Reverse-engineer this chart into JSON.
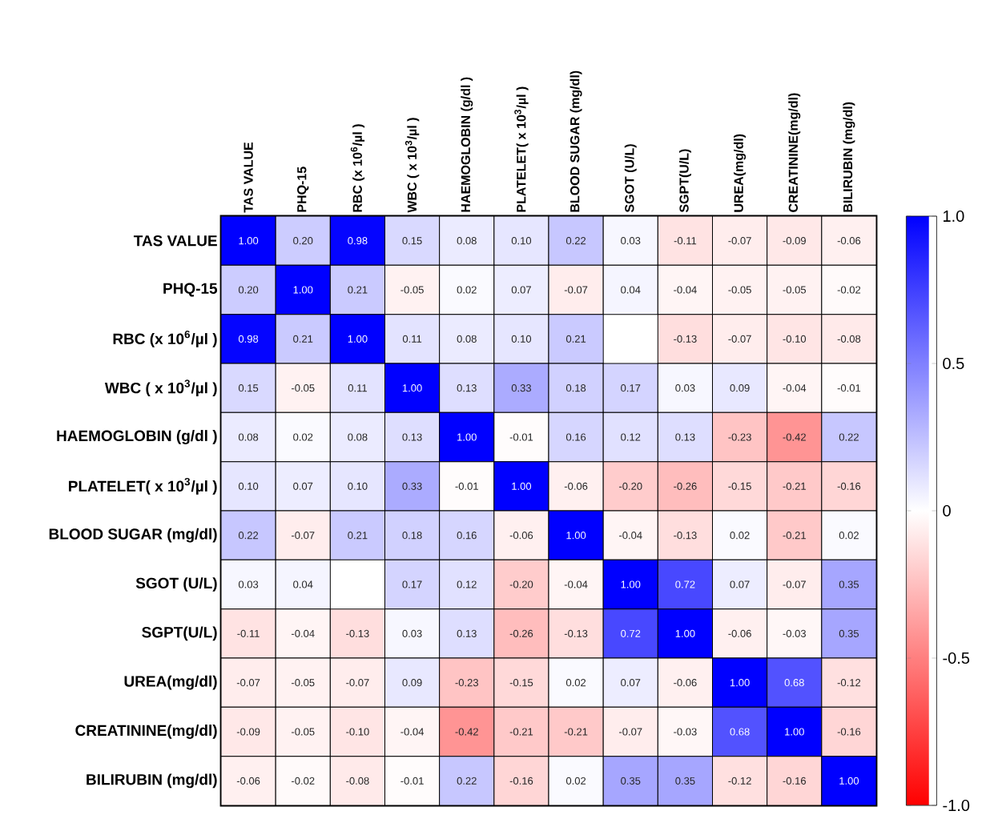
{
  "chart_data": {
    "type": "heatmap",
    "categories": [
      "TAS VALUE",
      "PHQ-15",
      "RBC (x 10$^{6}$/µl )",
      "WBC ( x 10$^{3}$/µl )",
      "HAEMOGLOBIN (g/dl )",
      "PLATELET( x 10$^{3}$/µl )",
      "BLOOD SUGAR (mg/dl)",
      "SGOT (U/L)",
      "SGPT(U/L)",
      "UREA(mg/dl)",
      "CREATININE(mg/dl)",
      "BILIRUBIN (mg/dl)"
    ],
    "y_categories": [
      "TAS VALUE",
      "PHQ-15",
      "RBC (x 10$^{6}$/µl )",
      "WBC ( x 10$^{3}$/µl )",
      "HAEMOGLOBIN (g/dl )",
      "PLATELET( x 10$^{3}$/µl )",
      "BLOOD SUGAR (mg/dl)",
      "SGOT (U/L)",
      "SGPT(U/L)",
      "UREA(mg/dl)",
      "CREATININE(mg/dl)",
      "BILIRUBIN (mg/dl)"
    ],
    "cells": [
      [
        1.0,
        0.2,
        0.98,
        0.15,
        0.08,
        0.1,
        0.22,
        0.03,
        -0.11,
        -0.07,
        -0.09,
        -0.06
      ],
      [
        0.2,
        1.0,
        0.21,
        -0.05,
        0.02,
        0.07,
        -0.07,
        0.04,
        -0.04,
        -0.05,
        -0.05,
        -0.02
      ],
      [
        0.98,
        0.21,
        1.0,
        0.11,
        0.08,
        0.1,
        0.21,
        null,
        -0.13,
        -0.07,
        -0.1,
        -0.08
      ],
      [
        0.15,
        -0.05,
        0.11,
        1.0,
        0.13,
        0.33,
        0.18,
        0.17,
        0.03,
        0.09,
        -0.04,
        -0.01
      ],
      [
        0.08,
        0.02,
        0.08,
        0.13,
        1.0,
        -0.01,
        0.16,
        0.12,
        0.13,
        -0.23,
        -0.42,
        0.22
      ],
      [
        0.1,
        0.07,
        0.1,
        0.33,
        -0.01,
        1.0,
        -0.06,
        -0.2,
        -0.26,
        -0.15,
        -0.21,
        -0.16
      ],
      [
        0.22,
        -0.07,
        0.21,
        0.18,
        0.16,
        -0.06,
        1.0,
        -0.04,
        -0.13,
        0.02,
        -0.21,
        0.02
      ],
      [
        0.03,
        0.04,
        null,
        0.17,
        0.12,
        -0.2,
        -0.04,
        1.0,
        0.72,
        0.07,
        -0.07,
        0.35
      ],
      [
        -0.11,
        -0.04,
        -0.13,
        0.03,
        0.13,
        -0.26,
        -0.13,
        0.72,
        1.0,
        -0.06,
        -0.03,
        0.35
      ],
      [
        -0.07,
        -0.05,
        -0.07,
        0.09,
        -0.23,
        -0.15,
        0.02,
        0.07,
        -0.06,
        1.0,
        0.68,
        -0.12
      ],
      [
        -0.09,
        -0.05,
        -0.1,
        -0.04,
        -0.42,
        -0.21,
        -0.21,
        -0.07,
        -0.03,
        0.68,
        1.0,
        -0.16
      ],
      [
        -0.06,
        -0.02,
        -0.08,
        -0.01,
        0.22,
        -0.16,
        0.02,
        0.35,
        0.35,
        -0.12,
        -0.16,
        1.0
      ]
    ],
    "cell_labels": [
      [
        "1.00",
        "0.20",
        "0.98",
        "0.15",
        "0.08",
        "0.10",
        "0.22",
        "0.03",
        "-0.11",
        "-0.07",
        "-0.09",
        "-0.06"
      ],
      [
        "0.20",
        "1.00",
        "0.21",
        "-0.05",
        "0.02",
        "0.07",
        "-0.07",
        "0.04",
        "-0.04",
        "-0.05",
        "-0.05",
        "-0.02"
      ],
      [
        "0.98",
        "0.21",
        "1.00",
        "0.11",
        "0.08",
        "0.10",
        "0.21",
        null,
        "-0.13",
        "-0.07",
        "-0.10",
        "-0.08"
      ],
      [
        "0.15",
        "-0.05",
        "0.11",
        "1.00",
        "0.13",
        "0.33",
        "0.18",
        "0.17",
        "0.03",
        "0.09",
        "-0.04",
        "-0.01"
      ],
      [
        "0.08",
        "0.02",
        "0.08",
        "0.13",
        "1.00",
        "-0.01",
        "0.16",
        "0.12",
        "0.13",
        "-0.23",
        "-0.42",
        "0.22"
      ],
      [
        "0.10",
        "0.07",
        "0.10",
        "0.33",
        "-0.01",
        "1.00",
        "-0.06",
        "-0.20",
        "-0.26",
        "-0.15",
        "-0.21",
        "-0.16"
      ],
      [
        "0.22",
        "-0.07",
        "0.21",
        "0.18",
        "0.16",
        "-0.06",
        "1.00",
        "-0.04",
        "-0.13",
        "0.02",
        "-0.21",
        "0.02"
      ],
      [
        "0.03",
        "0.04",
        null,
        "0.17",
        "0.12",
        "-0.20",
        "-0.04",
        "1.00",
        "0.72",
        "0.07",
        "-0.07",
        "0.35"
      ],
      [
        "-0.11",
        "-0.04",
        "-0.13",
        "0.03",
        "0.13",
        "-0.26",
        "-0.13",
        "0.72",
        "1.00",
        "-0.06",
        "-0.03",
        "0.35"
      ],
      [
        "-0.07",
        "-0.05",
        "-0.07",
        "0.09",
        "-0.23",
        "-0.15",
        "0.02",
        "0.07",
        "-0.06",
        "1.00",
        "0.68",
        "-0.12"
      ],
      [
        "-0.09",
        "-0.05",
        "-0.10",
        "-0.04",
        "-0.42",
        "-0.21",
        "-0.21",
        "-0.07",
        "-0.03",
        "0.68",
        "1.00",
        "-0.16"
      ],
      [
        "-0.06",
        "-0.02",
        "-0.08",
        "-0.01",
        "0.22",
        "-0.16",
        "0.02",
        "0.35",
        "0.35",
        "-0.12",
        "-0.16",
        "1.00"
      ]
    ],
    "clim": [
      -1,
      1
    ],
    "cticks": [
      {
        "value": 1,
        "label": "1.0"
      },
      0.5,
      0,
      -0.5,
      {
        "value": -1,
        "label": "-1.0"
      }
    ]
  }
}
